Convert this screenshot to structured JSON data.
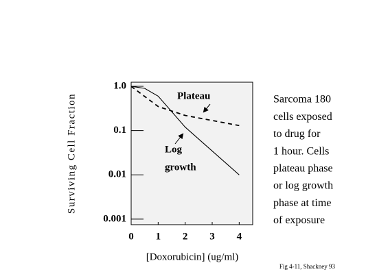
{
  "chart_data": {
    "type": "line",
    "y_label": "Surviving Cell Fraction",
    "x_label": "[Doxorubicin] (ug/ml)",
    "log_y": true,
    "xlim": [
      0,
      4.5
    ],
    "ylim": [
      0.00075,
      1.24
    ],
    "xticks": [
      0,
      1,
      2,
      3,
      4
    ],
    "yticks": [
      {
        "value": 1,
        "label": "1.0"
      },
      0.1,
      0.01,
      0.001
    ],
    "series": [
      {
        "name": "Log growth",
        "color": "#000000",
        "dashed": false,
        "x": [
          0,
          0.5,
          1,
          2,
          4
        ],
        "values": [
          1.0,
          0.9,
          0.6,
          0.12,
          0.01
        ]
      },
      {
        "name": "Plateau",
        "color": "#000000",
        "dashed": true,
        "x": [
          0,
          1,
          2,
          4
        ],
        "values": [
          1.0,
          0.35,
          0.22,
          0.13
        ]
      }
    ],
    "annotations": [
      "Plateau",
      "Log",
      "growth"
    ],
    "side_text": [
      "Sarcoma 180",
      "cells exposed",
      "to drug for",
      "1 hour. Cells",
      "plateau phase",
      "or log growth",
      "phase at time",
      "of exposure"
    ],
    "footnote": "Fig 4-11, Shackney 93"
  }
}
